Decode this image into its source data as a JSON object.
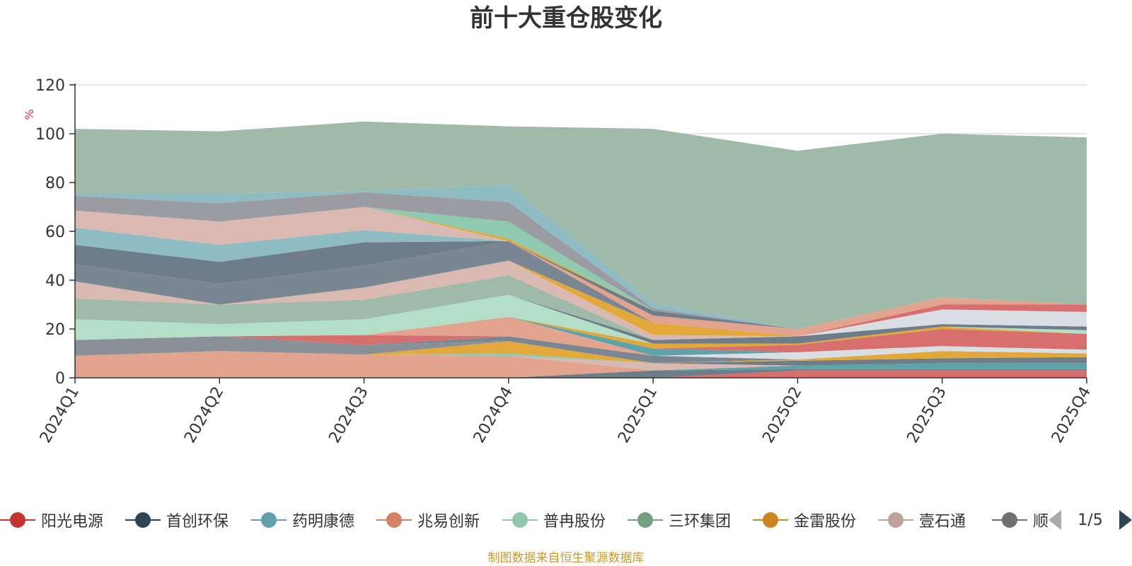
{
  "chart_data": {
    "type": "area",
    "stacked": true,
    "title": "前十大重仓股变化",
    "ylabel": "%",
    "ylim": [
      0,
      120
    ],
    "yticks": [
      0,
      20,
      40,
      60,
      80,
      100,
      120
    ],
    "grid": true,
    "legend_position": "bottom",
    "categories": [
      "2024Q1",
      "2024Q2",
      "2024Q3",
      "2024Q4",
      "2025Q1",
      "2025Q2",
      "2025Q3",
      "2025Q4"
    ],
    "series": [
      {
        "name": "",
        "color": "#d86f6f",
        "values": [
          0,
          0,
          0,
          0,
          0,
          3.0,
          3.0,
          3.0
        ]
      },
      {
        "name": "",
        "color": "#6f7c8a",
        "values": [
          0,
          0,
          0,
          0,
          3.0,
          0.5,
          0.5,
          0.5
        ]
      },
      {
        "name": "",
        "color": "#5da3a8",
        "values": [
          0,
          0,
          0,
          0,
          0,
          1.5,
          2.5,
          2.5
        ]
      },
      {
        "name": "",
        "color": "#e2a38f",
        "values": [
          9.0,
          11.0,
          9.5,
          9.0,
          0,
          0,
          0,
          0
        ]
      },
      {
        "name": "",
        "color": "#d9b9b2",
        "values": [
          0,
          0,
          0,
          0,
          3.0,
          0,
          0,
          0
        ]
      },
      {
        "name": "",
        "color": "#6f7c8a",
        "values": [
          0,
          0,
          0,
          0,
          0,
          2.0,
          2.0,
          2.5
        ]
      },
      {
        "name": "",
        "color": "#8ec9b0",
        "values": [
          0,
          0,
          0,
          1.0,
          0,
          0,
          0,
          0
        ]
      },
      {
        "name": "",
        "color": "#e2a93a",
        "values": [
          0,
          0,
          0,
          5.0,
          0,
          0.5,
          3.0,
          1.5
        ]
      },
      {
        "name": "",
        "color": "#d9dde4",
        "values": [
          0,
          0,
          0,
          0,
          0,
          0,
          0,
          1.5
        ]
      },
      {
        "name": "",
        "color": "#8a9097",
        "values": [
          6.5,
          6.0,
          4.0,
          0,
          0,
          0,
          0,
          0
        ]
      },
      {
        "name": "",
        "color": "#7a8793",
        "values": [
          0,
          0,
          0,
          2.0,
          3.0,
          0,
          0,
          0
        ]
      },
      {
        "name": "",
        "color": "#d9dde4",
        "values": [
          0,
          0,
          0,
          0,
          0,
          3.0,
          2.0,
          0
        ]
      },
      {
        "name": "",
        "color": "#d86f6f",
        "values": [
          0,
          0,
          4.0,
          0,
          0,
          0,
          0,
          0
        ]
      },
      {
        "name": "",
        "color": "#e2a38f",
        "values": [
          0,
          0,
          0,
          8.0,
          0,
          0,
          0,
          0
        ]
      },
      {
        "name": "",
        "color": "#5da3a8",
        "values": [
          0,
          0,
          0,
          0,
          3.0,
          0,
          0,
          0
        ]
      },
      {
        "name": "",
        "color": "#d86f6f",
        "values": [
          0,
          0,
          0,
          0,
          0,
          3.0,
          7.0,
          6.5
        ]
      },
      {
        "name": "",
        "color": "#e2a93a",
        "values": [
          0,
          0,
          0,
          0,
          2.0,
          0.5,
          1.0,
          0
        ]
      },
      {
        "name": "",
        "color": "#b3dfc9",
        "values": [
          8.5,
          5.0,
          6.5,
          9.0,
          0,
          0,
          0,
          1.5
        ]
      },
      {
        "name": "",
        "color": "#6f7c8a",
        "values": [
          0,
          0,
          0,
          0,
          1.5,
          3.0,
          1.0,
          1.5
        ]
      },
      {
        "name": "",
        "color": "#9fbaa8",
        "values": [
          8.5,
          8.0,
          8.0,
          8.0,
          0,
          0,
          0,
          0
        ]
      },
      {
        "name": "",
        "color": "#d9b9b2",
        "values": [
          7.0,
          0,
          5.0,
          6.0,
          2.0,
          0,
          0,
          0
        ]
      },
      {
        "name": "",
        "color": "#e2a93a",
        "values": [
          0,
          0,
          0,
          0,
          5.0,
          0,
          0,
          0
        ]
      },
      {
        "name": "",
        "color": "#d9dde4",
        "values": [
          0,
          0,
          0,
          0,
          0,
          0,
          6.0,
          6.0
        ]
      },
      {
        "name": "",
        "color": "#7a8793",
        "values": [
          7.0,
          8.5,
          9.0,
          8.0,
          0,
          0,
          0,
          0
        ]
      },
      {
        "name": "",
        "color": "#d86f6f",
        "values": [
          0,
          0,
          0,
          0,
          0,
          0,
          2.0,
          3.0
        ]
      },
      {
        "name": "",
        "color": "#e2a38f",
        "values": [
          0,
          0,
          0,
          0,
          3.0,
          3.0,
          3.0,
          0
        ]
      },
      {
        "name": "",
        "color": "#6f7c8a",
        "values": [
          8.0,
          9.0,
          9.5,
          0,
          2.0,
          0,
          0,
          0
        ]
      },
      {
        "name": "",
        "color": "#8fbcc2",
        "values": [
          7.0,
          7.0,
          5.0,
          0,
          0,
          0,
          0,
          0
        ]
      },
      {
        "name": "",
        "color": "#d9b9b2",
        "values": [
          7.0,
          9.5,
          9.5,
          0,
          0,
          0,
          0,
          0
        ]
      },
      {
        "name": "",
        "color": "#e2a93a",
        "values": [
          0,
          0,
          0,
          1.0,
          0,
          0,
          0,
          0
        ]
      },
      {
        "name": "",
        "color": "#8ec9b0",
        "values": [
          0,
          0,
          0,
          7.0,
          0,
          0,
          0,
          0
        ]
      },
      {
        "name": "",
        "color": "#9a9ca1",
        "values": [
          6.0,
          7.5,
          6.0,
          8.0,
          1.0,
          0,
          0,
          0
        ]
      },
      {
        "name": "",
        "color": "#8fbcc2",
        "values": [
          1.0,
          4.0,
          0.5,
          7.0,
          2.0,
          0,
          0,
          0
        ]
      },
      {
        "name": "",
        "color": "#9fbaa8",
        "values": [
          26.5,
          25.5,
          28.5,
          24.0,
          71.5,
          73.0,
          67.0,
          68.5
        ]
      }
    ]
  },
  "legend": {
    "items": [
      {
        "label": "阳光电源",
        "color": "#c23531"
      },
      {
        "label": "首创环保",
        "color": "#2f4554"
      },
      {
        "label": "药明康德",
        "color": "#61a0a8"
      },
      {
        "label": "兆易创新",
        "color": "#d48265"
      },
      {
        "label": "普冉股份",
        "color": "#91c7ae"
      },
      {
        "label": "三环集团",
        "color": "#749f83"
      },
      {
        "label": "金雷股份",
        "color": "#ca8622"
      },
      {
        "label": "壹石通",
        "color": "#bda29a"
      },
      {
        "label": "顺络电子",
        "color": "#6e7074"
      }
    ],
    "page_indicator": "1/5",
    "prev_icon": "triangle-left-icon",
    "next_icon": "triangle-right-icon"
  },
  "footer": {
    "note": "制图数据来自恒生聚源数据库"
  }
}
